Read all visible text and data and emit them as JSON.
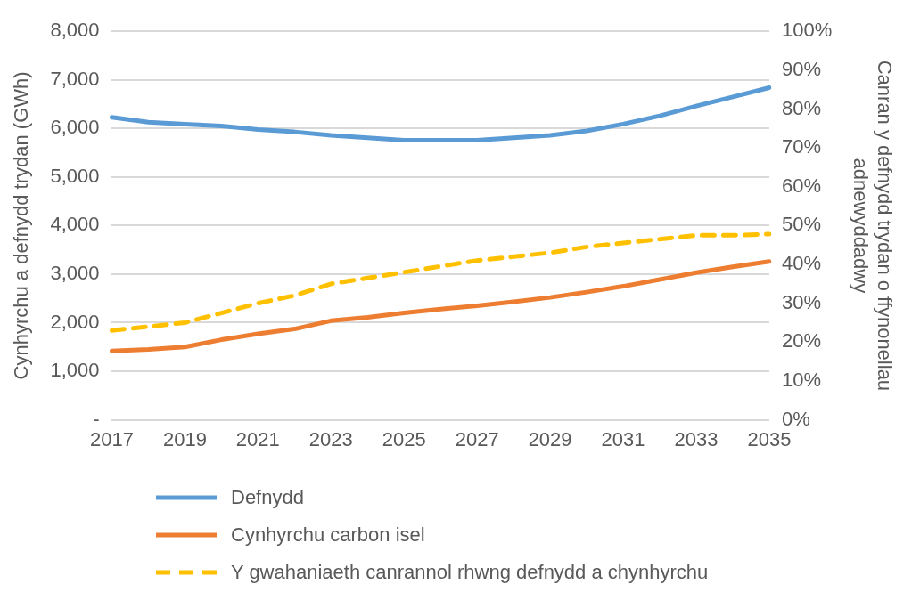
{
  "chart_data": {
    "type": "line",
    "ylabel": "Cynhyrchu a defnydd trydan (GWh)",
    "y2label": "Canran y defnydd trydan o ffynonellau adnewyddadwy",
    "categories": [
      "2017",
      null,
      "2019",
      null,
      "2021",
      null,
      "2023",
      null,
      "2025",
      null,
      "2027",
      null,
      "2029",
      null,
      "2031",
      null,
      "2033",
      null,
      "2035"
    ],
    "series": [
      {
        "name": "Defnydd",
        "color": "#5b9bd5",
        "values": [
          6230,
          6130,
          6090,
          6050,
          5980,
          5930,
          5860,
          5810,
          5760,
          5760,
          5760,
          5810,
          5860,
          5950,
          6090,
          6260,
          6460,
          6650,
          6840
        ]
      },
      {
        "name": "Cynhyrchu carbon isel",
        "color": "#ed7d31",
        "values": [
          1420,
          1450,
          1500,
          1650,
          1770,
          1870,
          2040,
          2110,
          2200,
          2280,
          2350,
          2430,
          2520,
          2630,
          2750,
          2890,
          3030,
          3150,
          3260
        ]
      },
      {
        "name": "Y gwahaniaeth canrannol rhwng defnydd a chynhyrchu",
        "color": "#ffc000",
        "axis": "y2",
        "line_style": "dashed",
        "values": [
          23,
          24,
          25,
          27.5,
          30,
          32,
          35,
          36.5,
          38,
          39.5,
          41,
          42,
          43,
          44.5,
          45.5,
          46.5,
          47.5,
          47.5,
          47.8
        ]
      }
    ],
    "ylim": [
      0,
      8000
    ],
    "yticks": [
      {
        "value": 0,
        "label": "-"
      },
      {
        "value": 1000,
        "label": "1,000"
      },
      {
        "value": 2000,
        "label": "2,000"
      },
      {
        "value": 3000,
        "label": "3,000"
      },
      {
        "value": 4000,
        "label": "4,000"
      },
      {
        "value": 5000,
        "label": "5,000"
      },
      {
        "value": 6000,
        "label": "6,000"
      },
      {
        "value": 7000,
        "label": "7,000"
      },
      {
        "value": 8000,
        "label": "8,000"
      }
    ],
    "y2lim": [
      0,
      100
    ],
    "y2ticks": [
      {
        "value": 0,
        "label": "0%"
      },
      {
        "value": 10,
        "label": "10%"
      },
      {
        "value": 20,
        "label": "20%"
      },
      {
        "value": 30,
        "label": "30%"
      },
      {
        "value": 40,
        "label": "40%"
      },
      {
        "value": 50,
        "label": "50%"
      },
      {
        "value": 60,
        "label": "60%"
      },
      {
        "value": 70,
        "label": "70%"
      },
      {
        "value": 80,
        "label": "80%"
      },
      {
        "value": 90,
        "label": "90%"
      },
      {
        "value": 100,
        "label": "100%"
      }
    ],
    "grid": "y",
    "legend": "bottom",
    "marker": "none"
  }
}
